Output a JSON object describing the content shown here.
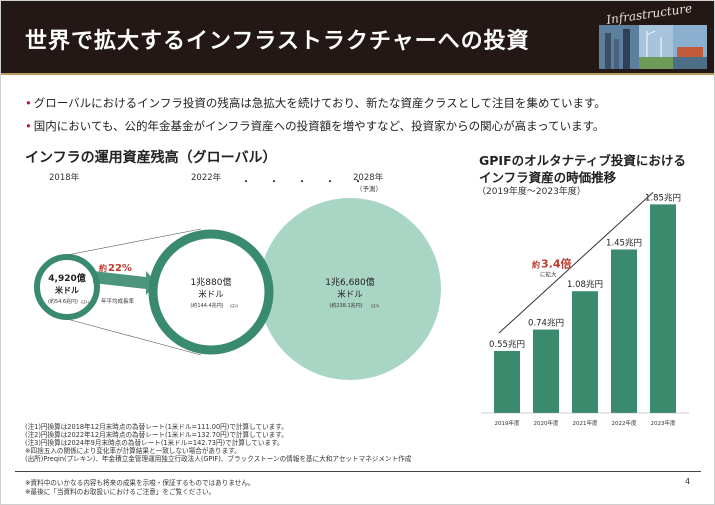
{
  "header": {
    "title": "世界で拡大するインフラストラクチャーへの投資",
    "logo_text": "Infrastructure",
    "accent_color": "#231815"
  },
  "bullets": [
    "グローバルにおけるインフラ投資の残高は急拡大を続けており、新たな資産クラスとして注目を集めています。",
    "国内においても、公的年金基金がインフラ資産への投資額を増やすなど、投資家からの関心が高まっています。"
  ],
  "bubble_chart": {
    "title": "インフラの運用資産残高（グローバル）",
    "years": [
      "2018年",
      "2022年",
      "2028年"
    ],
    "forecast_label": "（予測）",
    "dots": "・・・・・",
    "growth": {
      "prefix": "約",
      "value": "22%",
      "label": "年平均成長率"
    },
    "circles": [
      {
        "amount": "4,920億",
        "unit": "米ドル",
        "yen": "(約54.6兆円)",
        "note": "(注1)",
        "value_usd_bn": 492
      },
      {
        "amount": "1兆880億",
        "unit": "米ドル",
        "yen": "(約144.4兆円)",
        "note": "(注2)",
        "value_usd_bn": 1088
      },
      {
        "amount": "1兆6,680億",
        "unit": "米ドル",
        "yen": "(約238.1兆円)",
        "note": "(注3)",
        "value_usd_bn": 1668
      }
    ],
    "colors": {
      "ring": "#3a8a6e",
      "fill": "#a9d5c4",
      "accent": "#c0392b"
    }
  },
  "chart_data": {
    "type": "bar",
    "title": "GPIFのオルタナティブ投資における",
    "title_line2": "インフラ資産の時価推移",
    "subtitle": "（2019年度〜2023年度）",
    "categories": [
      "2019年度",
      "2020年度",
      "2021年度",
      "2022年度",
      "2023年度"
    ],
    "values": [
      0.55,
      0.74,
      1.08,
      1.45,
      1.85
    ],
    "value_labels": [
      "0.55兆円",
      "0.74兆円",
      "1.08兆円",
      "1.45兆円",
      "1.85兆円"
    ],
    "annotation": {
      "prefix": "約",
      "value": "3.4倍",
      "label": "に拡大"
    },
    "ylim": [
      0,
      2.0
    ],
    "bar_color": "#3a8a6e"
  },
  "notes": [
    "(注1)円換算は2018年12月末時点の為替レート(1米ドル=111.00円)で計算しています。",
    "(注2)円換算は2022年12月末時点の為替レート(1米ドル=132.70円)で計算しています。",
    "(注3)円換算は2024年9月末時点の為替レート(1米ドル=142.73円)で計算しています。",
    "※四捨五入の関係により変化率が計算結果と一致しない場合があります。",
    "(出所)Preqin(プレキン)、年金積立金管理運用独立行政法人(GPIF)、ブラックストーンの情報を基に大和アセットマネジメント作成"
  ],
  "footer": {
    "lines": [
      "※資料中のいかなる内容も将来の成果を示唆・保証するものではありません。",
      "※最後に「当資料のお取扱いにおけるご注意」をご覧ください。"
    ],
    "page": "4"
  }
}
